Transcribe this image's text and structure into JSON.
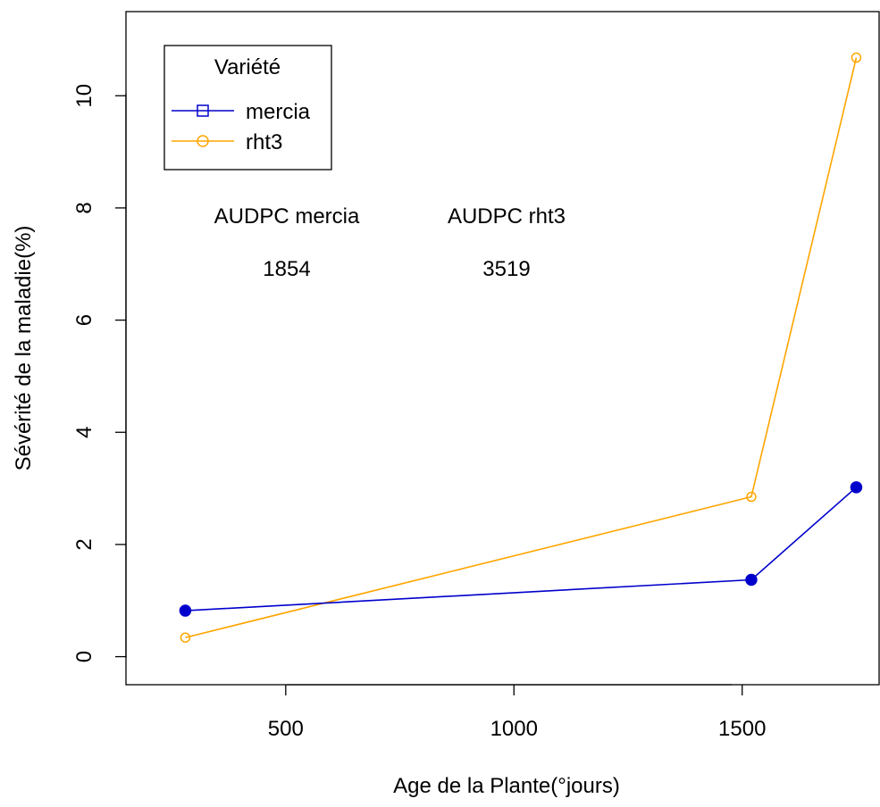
{
  "chart_data": {
    "type": "line",
    "title": "",
    "xlabel": "Age de la Plante(°jours)",
    "ylabel": "Sévérité de la maladie(%)",
    "xlim": [
      150,
      1800
    ],
    "ylim": [
      -0.5,
      11.5
    ],
    "xticks": [
      500,
      1000,
      1500
    ],
    "yticks": [
      0,
      2,
      4,
      6,
      8,
      10
    ],
    "grid": false,
    "legend": {
      "title": "Variété",
      "position": "top-left",
      "entries": [
        "mercia",
        "rht3"
      ]
    },
    "series": [
      {
        "name": "mercia",
        "color": "#0000cc",
        "marker": "filled-circle",
        "legend_marker": "square",
        "x": [
          280,
          1520,
          1750
        ],
        "y": [
          0.82,
          1.37,
          3.02
        ]
      },
      {
        "name": "rht3",
        "color": "#ffa500",
        "marker": "open-circle",
        "legend_marker": "open-circle",
        "x": [
          280,
          1520,
          1750
        ],
        "y": [
          0.34,
          2.85,
          10.68
        ]
      }
    ],
    "annotations": [
      {
        "label": "AUDPC mercia",
        "value": "1854"
      },
      {
        "label": "AUDPC rht3",
        "value": "3519"
      }
    ]
  }
}
